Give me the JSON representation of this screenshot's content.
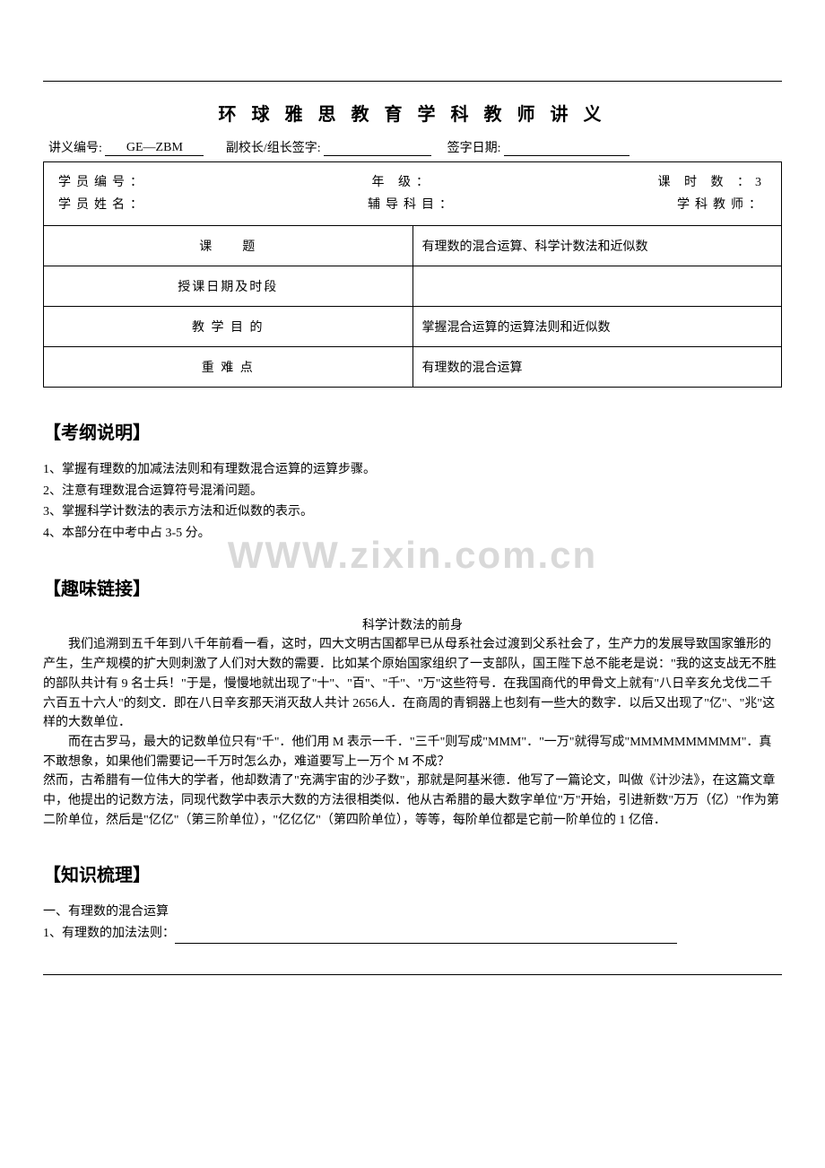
{
  "title": "环 球 雅 思 教 育 学 科 教 师 讲 义",
  "header": {
    "doc_no_label": "讲义编号:",
    "doc_no_value": "GE—ZBM",
    "vp_label": "副校长/组长签字:",
    "sign_date_label": "签字日期:"
  },
  "info": {
    "student_no_label": "学员编号：",
    "student_name_label": "学员姓名：",
    "grade_label": "年 级：",
    "subject_label": "辅导科目：",
    "hours_label": "课 时 数 ：3",
    "teacher_label": "学科教师：",
    "rows": [
      {
        "label": "课　　题",
        "value": "有理数的混合运算、科学计数法和近似数"
      },
      {
        "label": "授课日期及时段",
        "value": ""
      },
      {
        "label": "教 学 目 的",
        "value": "掌握混合运算的运算法则和近似数"
      },
      {
        "label": "重 难 点",
        "value": "有理数的混合运算"
      }
    ]
  },
  "sections": {
    "outline_head": "【考纲说明】",
    "outline_items": [
      "1、掌握有理数的加减法法则和有理数混合运算的运算步骤。",
      "2、注意有理数混合运算符号混淆问题。",
      "3、掌握科学计数法的表示方法和近似数的表示。",
      "4、本部分在中考中占 3-5 分。"
    ],
    "link_head": "【趣味链接】",
    "story_title": "科学计数法的前身",
    "story_p1": "我们追溯到五千年到八千年前看一看，这时，四大文明古国都早已从母系社会过渡到父系社会了，生产力的发展导致国家雏形的产生，生产规模的扩大则刺激了人们对大数的需要．比如某个原始国家组织了一支部队，国王陛下总不能老是说：\"我的这支战无不胜的部队共计有 9 名士兵！\"于是，慢慢地就出现了\"十\"、\"百\"、\"千\"、\"万\"这些符号．在我国商代的甲骨文上就有\"八日辛亥允戈伐二千六百五十六人\"的刻文．即在八日辛亥那天消灭敌人共计 2656人．在商周的青铜器上也刻有一些大的数字．以后又出现了\"亿\"、\"兆\"这样的大数单位．",
    "story_p2": "而在古罗马，最大的记数单位只有\"千\"．他们用 M 表示一千．\"三千\"则写成\"MMM\"．\"一万\"就得写成\"MMMMMMMMMM\"．真不敢想象，如果他们需要记一千万时怎么办，难道要写上一万个 M 不成？",
    "story_p3": "然而，古希腊有一位伟大的学者，他却数清了\"充满宇宙的沙子数\"，那就是阿基米德．他写了一篇论文，叫做《计沙法》，在这篇文章中，他提出的记数方法，同现代数学中表示大数的方法很相类似．他从古希腊的最大数字单位\"万\"开始，引进新数\"万万（亿）\"作为第二阶单位，然后是\"亿亿\"（第三阶单位），\"亿亿亿\"（第四阶单位），等等，每阶单位都是它前一阶单位的 1 亿倍．",
    "knowledge_head": "【知识梳理】",
    "k1": "一、有理数的混合运算",
    "k2": "1、有理数的加法法则："
  },
  "watermark": "WWW.zixin.com.cn"
}
